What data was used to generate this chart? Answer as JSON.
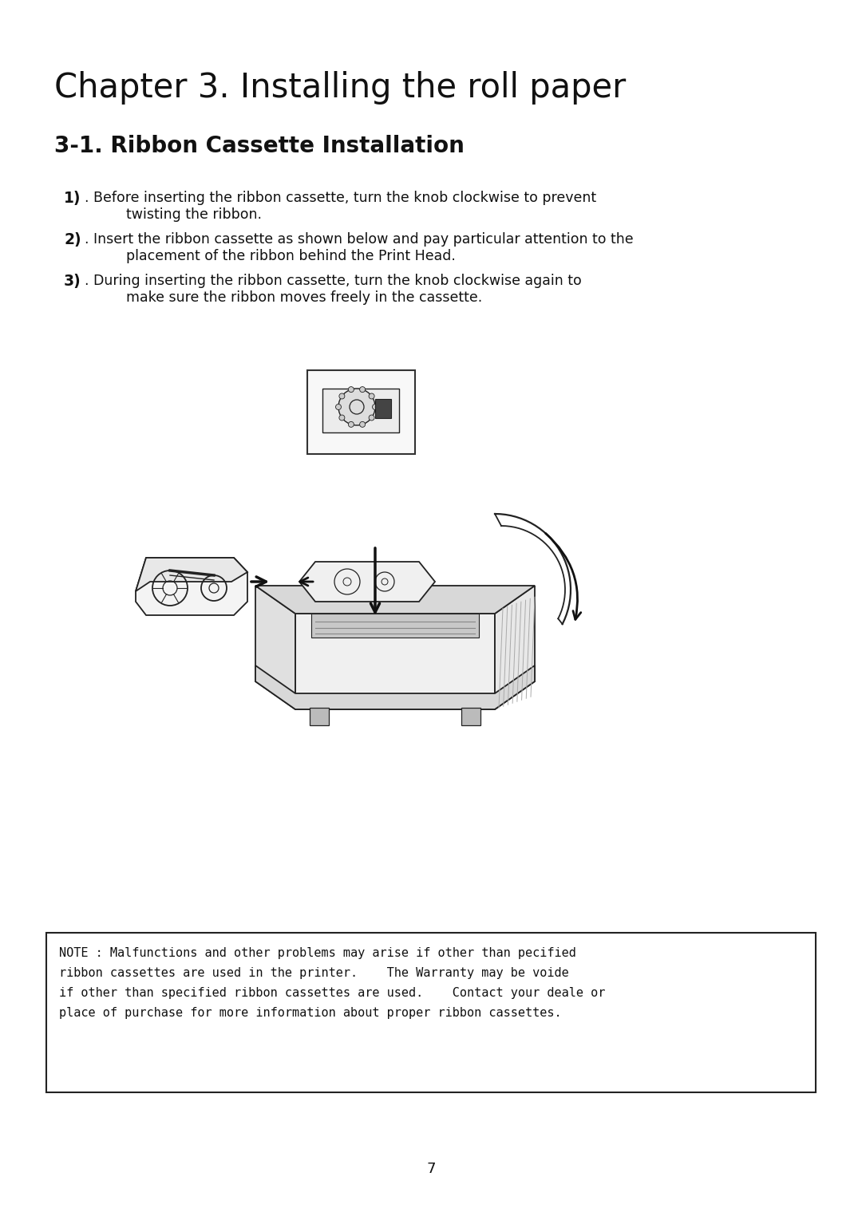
{
  "bg_color": "#ffffff",
  "title": "Chapter 3. Installing the roll paper",
  "subtitle": "3-1. Ribbon Cassette Installation",
  "title_font_size": 30,
  "subtitle_font_size": 20,
  "body_font_size": 12.5,
  "step1_num": "1)",
  "step1_line1": ". Before inserting the ribbon cassette, turn the knob clockwise to prevent",
  "step1_line2": "twisting the ribbon.",
  "step2_num": "2)",
  "step2_line1": ". Insert the ribbon cassette as shown below and pay particular attention to the",
  "step2_line2": "placement of the ribbon behind the Print Head.",
  "step3_num": "3)",
  "step3_line1": ". During inserting the ribbon cassette, turn the knob clockwise again to",
  "step3_line2": "make sure the ribbon moves freely in the cassette.",
  "note_line1": "NOTE : Malfunctions and other problems may arise if other than pecified",
  "note_line2": "ribbon cassettes are used in the printer.    The Warranty may be voide",
  "note_line3": "if other than specified ribbon cassettes are used.    Contact your deale or",
  "note_line4": "place of purchase for more information about proper ribbon cassettes.",
  "page_number": "7"
}
